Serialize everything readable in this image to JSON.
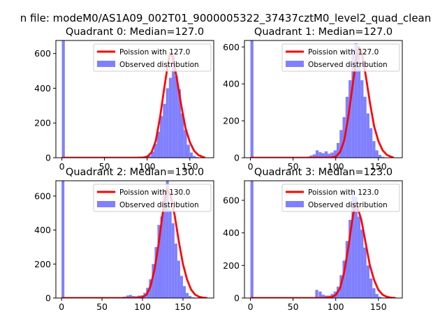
{
  "figure": {
    "suptitle": "n file: modeM0/AS1A09_002T01_9000005322_37437cztM0_level2_quad_clean"
  },
  "colors": {
    "poisson_line": "#ff0000",
    "histogram": "#8080ff",
    "frame": "#000000",
    "background": "#ffffff"
  },
  "chart_data": [
    {
      "type": "bar",
      "title": "Quadrant 0: Median=127.0",
      "xlim": [
        -7,
        178
      ],
      "ylim": [
        0,
        675
      ],
      "xticks": [
        0,
        50,
        100,
        150
      ],
      "yticks": [
        0,
        200,
        400,
        600
      ],
      "legend": {
        "placement": "top-right"
      },
      "bin_width": 3.5,
      "series": [
        {
          "name": "Observed distribution",
          "kind": "histogram",
          "x": [
            0,
            76,
            83,
            90,
            97,
            101,
            104.5,
            108,
            111.5,
            115,
            118.5,
            122,
            125.5,
            129,
            132.5,
            136,
            139.5,
            143,
            146.5,
            150,
            153.5,
            157
          ],
          "values": [
            675,
            4,
            5,
            5,
            4,
            12,
            35,
            80,
            150,
            240,
            310,
            400,
            460,
            590,
            470,
            395,
            255,
            160,
            75,
            30,
            10,
            4
          ]
        },
        {
          "name": "Poission with 127.0",
          "kind": "line",
          "x": [
            0,
            60,
            85,
            95,
            100,
            105,
            110,
            115,
            120,
            125,
            127,
            130,
            135,
            140,
            145,
            150,
            155,
            160,
            165,
            168
          ],
          "values": [
            0,
            0,
            0,
            1,
            6,
            30,
            95,
            230,
            400,
            560,
            600,
            580,
            450,
            300,
            170,
            90,
            40,
            15,
            5,
            0
          ]
        }
      ]
    },
    {
      "type": "bar",
      "title": "Quadrant 1: Median=127.0",
      "xlim": [
        -7,
        178
      ],
      "ylim": [
        0,
        635
      ],
      "xticks": [
        0,
        50,
        100,
        150
      ],
      "yticks": [
        0,
        200,
        400,
        600
      ],
      "legend": {
        "placement": "top-right"
      },
      "bin_width": 3.5,
      "series": [
        {
          "name": "Observed distribution",
          "kind": "histogram",
          "x": [
            0,
            62,
            66,
            69.5,
            73,
            76.5,
            80,
            83.5,
            87,
            90.5,
            94,
            97.5,
            101,
            104.5,
            108,
            111.5,
            115,
            118.5,
            122,
            125.5,
            129,
            132.5,
            136,
            139.5,
            143,
            146.5,
            150,
            153.5
          ],
          "values": [
            635,
            4,
            6,
            12,
            18,
            40,
            30,
            25,
            35,
            22,
            28,
            40,
            80,
            150,
            220,
            330,
            420,
            590,
            620,
            560,
            420,
            330,
            240,
            160,
            90,
            40,
            15,
            5
          ]
        },
        {
          "name": "Poission with 127.0",
          "kind": "line",
          "x": [
            0,
            60,
            85,
            95,
            100,
            105,
            110,
            115,
            120,
            125,
            127,
            130,
            135,
            140,
            145,
            150,
            155,
            160,
            165,
            168
          ],
          "values": [
            0,
            0,
            0,
            1,
            6,
            30,
            95,
            230,
            400,
            560,
            600,
            580,
            450,
            300,
            170,
            90,
            40,
            15,
            5,
            0
          ]
        }
      ]
    },
    {
      "type": "bar",
      "title": "Quadrant 2: Median=130.0",
      "xlim": [
        -7,
        188
      ],
      "ylim": [
        0,
        690
      ],
      "xticks": [
        0,
        50,
        100,
        150
      ],
      "yticks": [
        0,
        200,
        400,
        600
      ],
      "legend": {
        "placement": "top-right"
      },
      "bin_width": 3.5,
      "series": [
        {
          "name": "Observed distribution",
          "kind": "histogram",
          "x": [
            0,
            76,
            80,
            83.5,
            87,
            90.5,
            94,
            97.5,
            101,
            104.5,
            108,
            111.5,
            115,
            118.5,
            122,
            125.5,
            129,
            132.5,
            136,
            139.5,
            143,
            146.5,
            150,
            153.5,
            157,
            160.5
          ],
          "values": [
            690,
            8,
            15,
            18,
            12,
            10,
            14,
            16,
            30,
            60,
            110,
            200,
            300,
            430,
            480,
            640,
            700,
            520,
            440,
            320,
            220,
            130,
            70,
            30,
            12,
            4
          ]
        },
        {
          "name": "Poission with 130.0",
          "kind": "line",
          "x": [
            0,
            60,
            90,
            100,
            105,
            110,
            115,
            120,
            125,
            130,
            135,
            140,
            145,
            150,
            155,
            160,
            165,
            170,
            175,
            180
          ],
          "values": [
            0,
            0,
            0,
            5,
            20,
            70,
            170,
            320,
            500,
            640,
            600,
            480,
            330,
            200,
            110,
            50,
            20,
            7,
            2,
            0
          ]
        }
      ]
    },
    {
      "type": "bar",
      "title": "Quadrant 3: Median=123.0",
      "xlim": [
        -7,
        178
      ],
      "ylim": [
        0,
        720
      ],
      "xticks": [
        0,
        50,
        100,
        150
      ],
      "yticks": [
        0,
        200,
        400,
        600
      ],
      "legend": {
        "placement": "top-right"
      },
      "bin_width": 3.5,
      "series": [
        {
          "name": "Observed distribution",
          "kind": "histogram",
          "x": [
            0,
            76,
            80,
            83.5,
            87,
            90.5,
            94,
            97.5,
            101,
            104.5,
            108,
            111.5,
            115,
            118.5,
            122,
            125.5,
            129,
            132.5,
            136,
            139.5,
            143,
            146.5,
            150,
            153.5
          ],
          "values": [
            720,
            50,
            40,
            20,
            15,
            15,
            25,
            40,
            70,
            140,
            230,
            350,
            480,
            660,
            620,
            500,
            420,
            310,
            200,
            120,
            60,
            25,
            8,
            3
          ]
        },
        {
          "name": "Poission with 123.0",
          "kind": "line",
          "x": [
            0,
            60,
            85,
            95,
            100,
            105,
            110,
            115,
            120,
            123,
            125,
            130,
            135,
            140,
            145,
            150,
            155,
            160,
            165,
            170
          ],
          "values": [
            0,
            0,
            0,
            5,
            18,
            60,
            160,
            320,
            500,
            580,
            565,
            480,
            340,
            200,
            110,
            50,
            20,
            7,
            2,
            0
          ]
        }
      ]
    }
  ]
}
